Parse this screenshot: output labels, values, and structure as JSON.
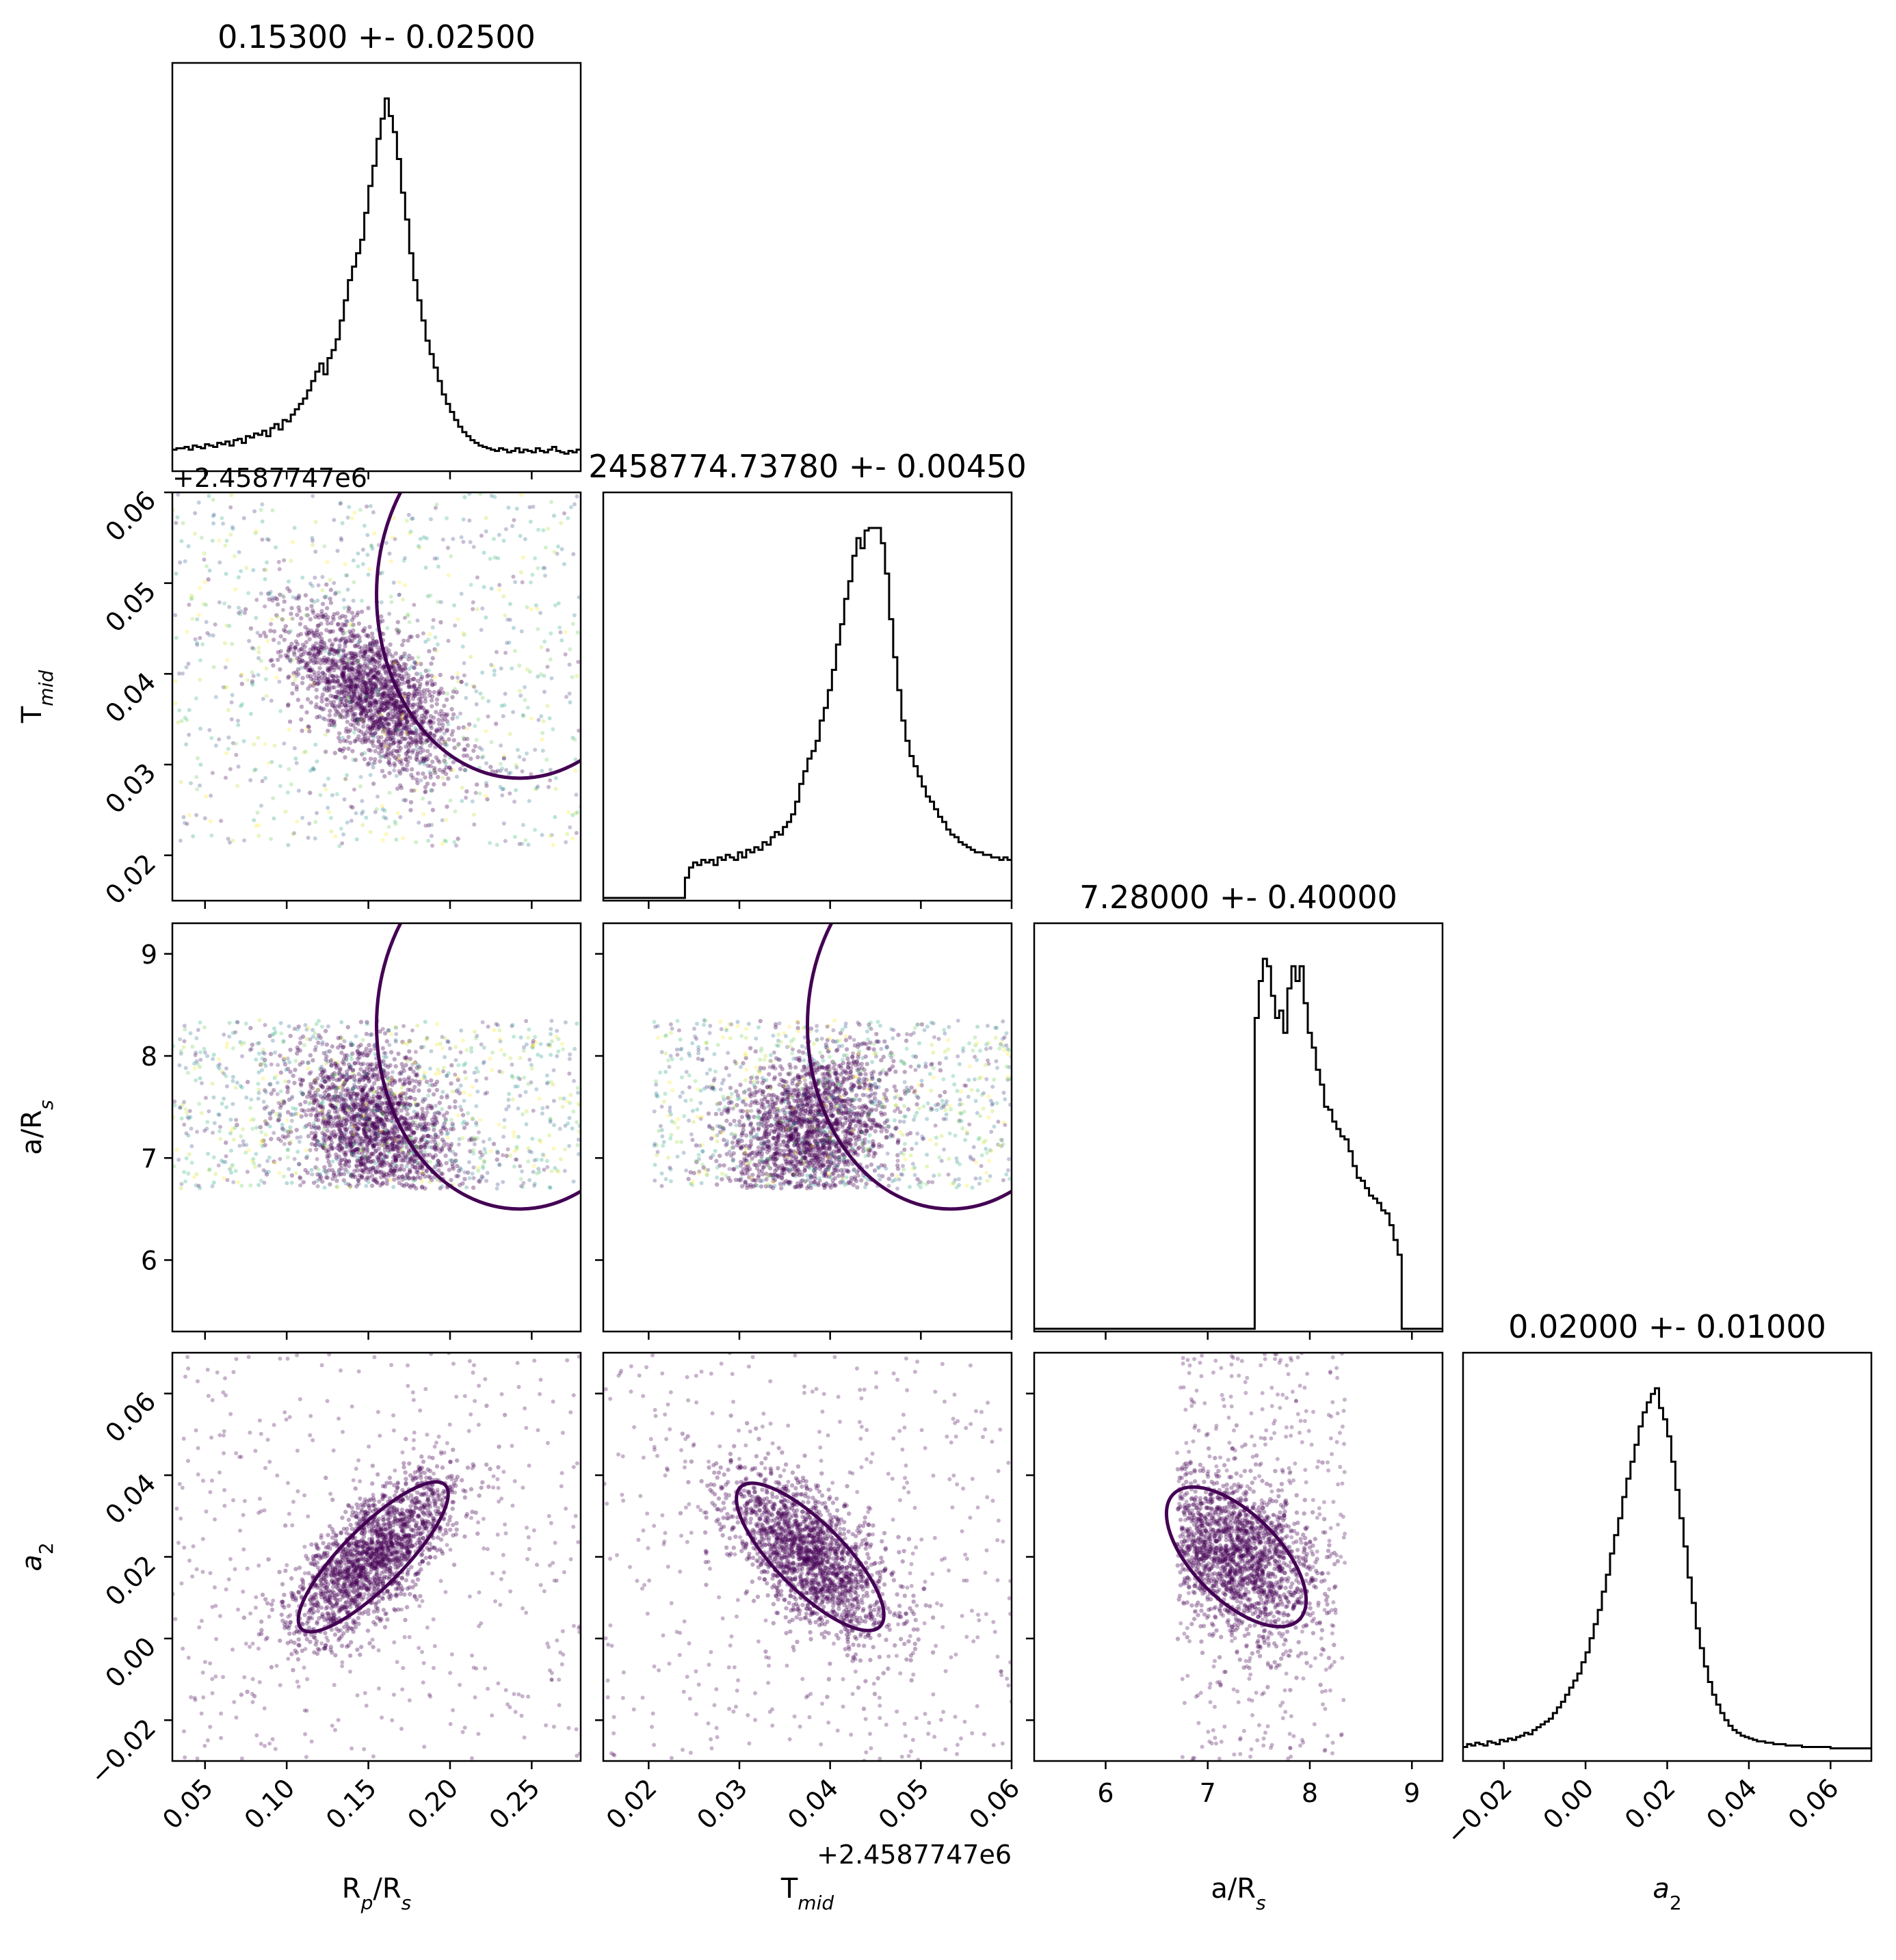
{
  "chart_data": {
    "type": "scatter",
    "subtype": "corner-plot",
    "parameters": [
      {
        "key": "rp",
        "label": "R",
        "label_sub": "p",
        "label_mid": "/R",
        "label_sub2": "s",
        "range": [
          0.03,
          0.28
        ],
        "ticks": [
          0.05,
          0.1,
          0.15,
          0.2,
          0.25
        ],
        "tick_labels": [
          "0.05",
          "0.10",
          "0.15",
          "0.20",
          "0.25"
        ],
        "title": "0.15300 +- 0.02500",
        "mean": 0.153,
        "std": 0.025
      },
      {
        "key": "tmid",
        "label": "T",
        "label_sub": "mid",
        "label_mid": "",
        "label_sub2": "",
        "range": [
          0.015,
          0.06
        ],
        "ticks": [
          0.02,
          0.03,
          0.04,
          0.05,
          0.06
        ],
        "tick_labels": [
          "0.02",
          "0.03",
          "0.04",
          "0.05",
          "0.06"
        ],
        "title": "2458774.73780 +- 0.00450",
        "offset": "+2.4587747e6",
        "mean": 0.0378,
        "std": 0.0045
      },
      {
        "key": "ars",
        "label": "a/R",
        "label_sub": "s",
        "label_mid": "",
        "label_sub2": "",
        "range": [
          5.3,
          9.3
        ],
        "ticks": [
          6,
          7,
          8,
          9
        ],
        "tick_labels": [
          "6",
          "7",
          "8",
          "9"
        ],
        "title": "7.28000 +- 0.40000",
        "mean": 7.28,
        "std": 0.4
      },
      {
        "key": "a2",
        "label": "a",
        "label_sub": "2",
        "label_mid": "",
        "label_sub2": "",
        "italic": true,
        "range": [
          -0.03,
          0.07
        ],
        "ticks": [
          -0.02,
          0.0,
          0.02,
          0.04,
          0.06
        ],
        "tick_labels": [
          "−0.02",
          "0.00",
          "0.02",
          "0.04",
          "0.06"
        ],
        "title": "0.02000 +- 0.01000",
        "mean": 0.02,
        "std": 0.01
      }
    ],
    "histograms": [
      {
        "param": "rp",
        "bins": [
          0.03,
          0.28
        ],
        "counts": [
          14,
          15,
          15,
          16,
          14,
          17,
          16,
          15,
          18,
          17,
          16,
          19,
          18,
          20,
          17,
          21,
          22,
          19,
          24,
          23,
          26,
          25,
          28,
          24,
          30,
          33,
          29,
          36,
          35,
          40,
          44,
          48,
          52,
          58,
          65,
          72,
          78,
          70,
          82,
          88,
          96,
          110,
          125,
          140,
          150,
          160,
          170,
          190,
          210,
          225,
          245,
          260,
          275,
          262,
          250,
          230,
          205,
          185,
          160,
          140,
          125,
          110,
          95,
          85,
          75,
          65,
          55,
          48,
          42,
          36,
          31,
          27,
          24,
          21,
          19,
          17,
          16,
          15,
          14,
          13,
          15,
          14,
          12,
          13,
          15,
          12,
          14,
          13,
          12,
          15,
          13,
          12,
          14,
          16,
          13,
          12,
          11,
          13,
          12,
          14
        ]
      },
      {
        "param": "tmid",
        "bins": [
          0.015,
          0.06
        ],
        "counts": [
          0,
          0,
          0,
          0,
          0,
          0,
          0,
          0,
          0,
          0,
          0,
          0,
          0,
          0,
          0,
          0,
          0,
          0,
          0,
          0,
          8,
          12,
          14,
          13,
          15,
          14,
          15,
          13,
          16,
          15,
          17,
          16,
          15,
          18,
          16,
          19,
          18,
          20,
          19,
          22,
          21,
          24,
          26,
          25,
          28,
          30,
          33,
          38,
          45,
          50,
          55,
          58,
          62,
          70,
          75,
          82,
          90,
          100,
          108,
          118,
          125,
          135,
          142,
          138,
          145,
          146,
          146,
          146,
          140,
          128,
          110,
          95,
          82,
          70,
          62,
          56,
          52,
          48,
          44,
          40,
          38,
          35,
          32,
          30,
          27,
          25,
          24,
          22,
          21,
          20,
          19,
          18,
          18,
          17,
          17,
          16,
          16,
          15,
          16,
          15
        ]
      },
      {
        "param": "ars",
        "bins": [
          5.3,
          9.3
        ],
        "counts": [
          0,
          0,
          0,
          0,
          0,
          0,
          0,
          0,
          0,
          0,
          0,
          0,
          0,
          0,
          0,
          0,
          0,
          0,
          0,
          0,
          0,
          0,
          0,
          0,
          0,
          0,
          0,
          0,
          0,
          0,
          0,
          0,
          0,
          0,
          0,
          0,
          0,
          0,
          0,
          0,
          0,
          0,
          0,
          0,
          0,
          0,
          0,
          0,
          0,
          0,
          0,
          0,
          0,
          0,
          210,
          235,
          250,
          245,
          225,
          210,
          215,
          200,
          230,
          245,
          235,
          245,
          220,
          200,
          190,
          175,
          165,
          150,
          148,
          140,
          135,
          130,
          128,
          120,
          110,
          102,
          100,
          95,
          90,
          88,
          85,
          80,
          78,
          70,
          60,
          50,
          0,
          0,
          0,
          0,
          0,
          0,
          0,
          0,
          0,
          0
        ]
      },
      {
        "param": "a2",
        "bins": [
          -0.03,
          0.07
        ],
        "counts": [
          8,
          10,
          9,
          11,
          10,
          9,
          12,
          11,
          10,
          13,
          12,
          14,
          13,
          15,
          16,
          18,
          17,
          20,
          22,
          24,
          26,
          28,
          32,
          36,
          40,
          45,
          50,
          55,
          60,
          68,
          75,
          85,
          95,
          105,
          118,
          130,
          145,
          158,
          170,
          185,
          198,
          210,
          222,
          235,
          245,
          252,
          258,
          262,
          248,
          240,
          228,
          210,
          190,
          170,
          150,
          128,
          110,
          92,
          78,
          65,
          54,
          45,
          38,
          32,
          27,
          23,
          20,
          18,
          16,
          15,
          14,
          13,
          12,
          12,
          11,
          11,
          10,
          10,
          10,
          9,
          9,
          9,
          9,
          8,
          8,
          8,
          8,
          8,
          8,
          8,
          7,
          7,
          7,
          7,
          7,
          7,
          7,
          7,
          7,
          7
        ]
      }
    ],
    "scatter_panels": [
      {
        "x": "rp",
        "y": "tmid",
        "mean": [
          0.153,
          0.0378
        ],
        "std": [
          0.025,
          0.0045
        ],
        "corr": -0.6,
        "colormap": "viridis",
        "bounded_y": [
          0.021,
          0.061
        ]
      },
      {
        "x": "rp",
        "y": "ars",
        "mean": [
          0.153,
          7.28
        ],
        "std": [
          0.025,
          0.4
        ],
        "corr": -0.3,
        "colormap": "viridis",
        "bounded_y": [
          6.7,
          8.35
        ]
      },
      {
        "x": "tmid",
        "y": "ars",
        "mean": [
          0.0378,
          7.28
        ],
        "std": [
          0.0045,
          0.4
        ],
        "corr": 0.3,
        "colormap": "viridis",
        "bounded_x": [
          0.0205,
          0.061
        ],
        "bounded_y": [
          6.7,
          8.35
        ]
      },
      {
        "x": "rp",
        "y": "a2",
        "mean": [
          0.153,
          0.02
        ],
        "std": [
          0.025,
          0.01
        ],
        "corr": 0.7,
        "colormap": "purple"
      },
      {
        "x": "tmid",
        "y": "a2",
        "mean": [
          0.0378,
          0.02
        ],
        "std": [
          0.0045,
          0.01
        ],
        "corr": -0.6,
        "colormap": "purple"
      },
      {
        "x": "ars",
        "y": "a2",
        "mean": [
          7.28,
          0.02
        ],
        "std": [
          0.4,
          0.01
        ],
        "corr": -0.3,
        "colormap": "purple",
        "bounded_x": [
          6.7,
          8.35
        ]
      }
    ],
    "offset_text": "+2.4587747e6",
    "colors": {
      "contour": "#440154",
      "hist": "#000000",
      "point_dark": "#440154"
    }
  }
}
